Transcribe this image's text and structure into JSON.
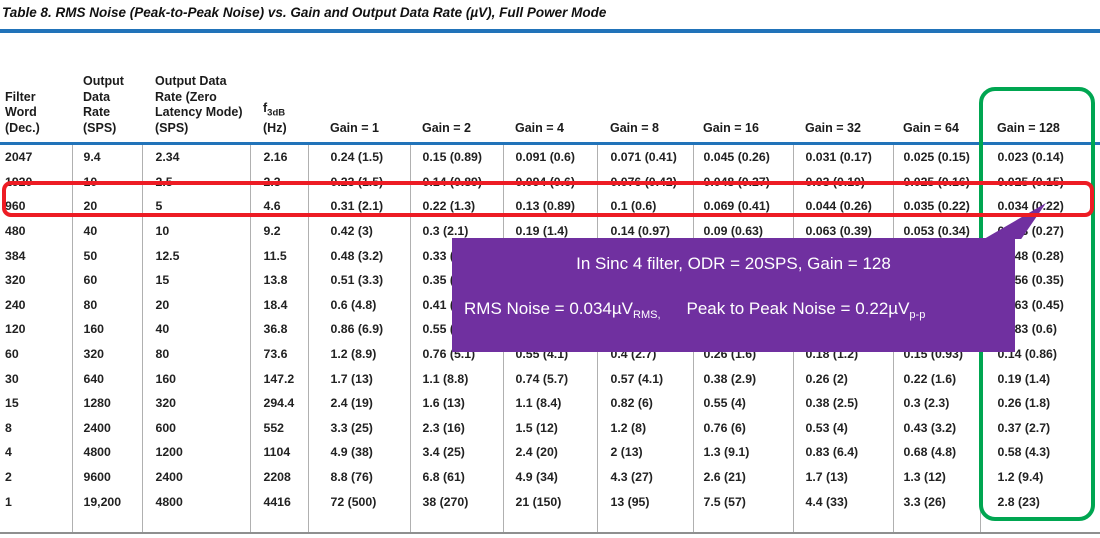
{
  "title": "Table 8. RMS Noise (Peak-to-Peak Noise) vs. Gain and Output Data Rate (µV), Full Power Mode",
  "table": {
    "headers": {
      "filter_word": {
        "l1": "Filter",
        "l2": "Word",
        "l3": "(Dec.)"
      },
      "odr": {
        "l1": "Output",
        "l2": "Data",
        "l3": "Rate",
        "l4": "(SPS)"
      },
      "odr_zero_latency": {
        "l1": "Output Data",
        "l2": "Rate (Zero",
        "l3": "Latency Mode)",
        "l4": "(SPS)"
      },
      "f3db": {
        "f": "f",
        "sub": "3dB",
        "l2": "(Hz)"
      }
    },
    "gain_headers": [
      "Gain = 1",
      "Gain = 2",
      "Gain = 4",
      "Gain = 8",
      "Gain = 16",
      "Gain = 32",
      "Gain = 64",
      "Gain = 128"
    ],
    "rows": [
      [
        "2047",
        "9.4",
        "2.34",
        "2.16",
        "0.24 (1.5)",
        "0.15 (0.89)",
        "0.091 (0.6)",
        "0.071 (0.41)",
        "0.045 (0.26)",
        "0.031 (0.17)",
        "0.025 (0.15)",
        "0.023 (0.14)"
      ],
      [
        "1920",
        "10",
        "2.5",
        "2.3",
        "0.23 (1.5)",
        "0.14 (0.89)",
        "0.094 (0.6)",
        "0.076 (0.42)",
        "0.048 (0.27)",
        "0.03 (0.19)",
        "0.025 (0.16)",
        "0.025 (0.15)"
      ],
      [
        "960",
        "20",
        "5",
        "4.6",
        "0.31 (2.1)",
        "0.22 (1.3)",
        "0.13 (0.89)",
        "0.1 (0.6)",
        "0.069 (0.41)",
        "0.044 (0.26)",
        "0.035 (0.22)",
        "0.034 (0.22)"
      ],
      [
        "480",
        "40",
        "10",
        "9.2",
        "0.42 (3)",
        "0.3 (2.1)",
        "0.19 (1.4)",
        "0.14 (0.97)",
        "0.09 (0.63)",
        "0.063 (0.39)",
        "0.053 (0.34)",
        "0.043 (0.27)"
      ],
      [
        "384",
        "50",
        "12.5",
        "11.5",
        "0.48 (3.2)",
        "0.33 (2.2)",
        "",
        "",
        "",
        "",
        "",
        "0.048 (0.28)"
      ],
      [
        "320",
        "60",
        "15",
        "13.8",
        "0.51 (3.3)",
        "0.35 (2.3)",
        "",
        "",
        "",
        "",
        "",
        "0.056 (0.35)"
      ],
      [
        "240",
        "80",
        "20",
        "18.4",
        "0.6 (4.8)",
        "0.41 (2.9)",
        "",
        "",
        "",
        "",
        "",
        "0.063 (0.45)"
      ],
      [
        "120",
        "160",
        "40",
        "36.8",
        "0.86 (6.9)",
        "0.55 (4.2)",
        "",
        "",
        "",
        "",
        "",
        "0.083 (0.6)"
      ],
      [
        "60",
        "320",
        "80",
        "73.6",
        "1.2 (8.9)",
        "0.76 (5.1)",
        "0.55 (4.1)",
        "0.4 (2.7)",
        "0.26 (1.6)",
        "0.18 (1.2)",
        "0.15 (0.93)",
        "0.14 (0.86)"
      ],
      [
        "30",
        "640",
        "160",
        "147.2",
        "1.7 (13)",
        "1.1 (8.8)",
        "0.74 (5.7)",
        "0.57 (4.1)",
        "0.38 (2.9)",
        "0.26 (2)",
        "0.22 (1.6)",
        "0.19 (1.4)"
      ],
      [
        "15",
        "1280",
        "320",
        "294.4",
        "2.4 (19)",
        "1.6 (13)",
        "1.1 (8.4)",
        "0.82 (6)",
        "0.55 (4)",
        "0.38 (2.5)",
        "0.3 (2.3)",
        "0.26 (1.8)"
      ],
      [
        "8",
        "2400",
        "600",
        "552",
        "3.3 (25)",
        "2.3 (16)",
        "1.5 (12)",
        "1.2 (8)",
        "0.76 (6)",
        "0.53 (4)",
        "0.43 (3.2)",
        "0.37 (2.7)"
      ],
      [
        "4",
        "4800",
        "1200",
        "1104",
        "4.9 (38)",
        "3.4 (25)",
        "2.4 (20)",
        "2 (13)",
        "1.3 (9.1)",
        "0.83 (6.4)",
        "0.68 (4.8)",
        "0.58 (4.3)"
      ],
      [
        "2",
        "9600",
        "2400",
        "2208",
        "8.8 (76)",
        "6.8 (61)",
        "4.9 (34)",
        "4.3 (27)",
        "2.6 (21)",
        "1.7 (13)",
        "1.3 (12)",
        "1.2 (9.4)"
      ],
      [
        "1",
        "19,200",
        "4800",
        "4416",
        "72 (500)",
        "38 (270)",
        "21 (150)",
        "13 (95)",
        "7.5 (57)",
        "4.4 (33)",
        "3.3 (26)",
        "2.8 (23)"
      ]
    ]
  },
  "annotations": {
    "highlight_row_filter_word": "960",
    "highlight_row_color": "#ed1c24",
    "highlight_column": "Gain = 128",
    "highlight_column_color": "#00a651",
    "callout": {
      "bg_color": "#7030a0",
      "line1": "In Sinc 4 filter, ODR = 20SPS, Gain = 128",
      "rms_text": "RMS Noise = 0.034µV",
      "rms_sub": "RMS,",
      "pp_text": "Peak to Peak Noise = 0.22µV",
      "pp_sub": "p-p"
    }
  },
  "colors": {
    "rule_blue": "#2173b9",
    "separator_gray": "#b0b0b0",
    "bottom_rule_gray": "#8f8f8f"
  }
}
